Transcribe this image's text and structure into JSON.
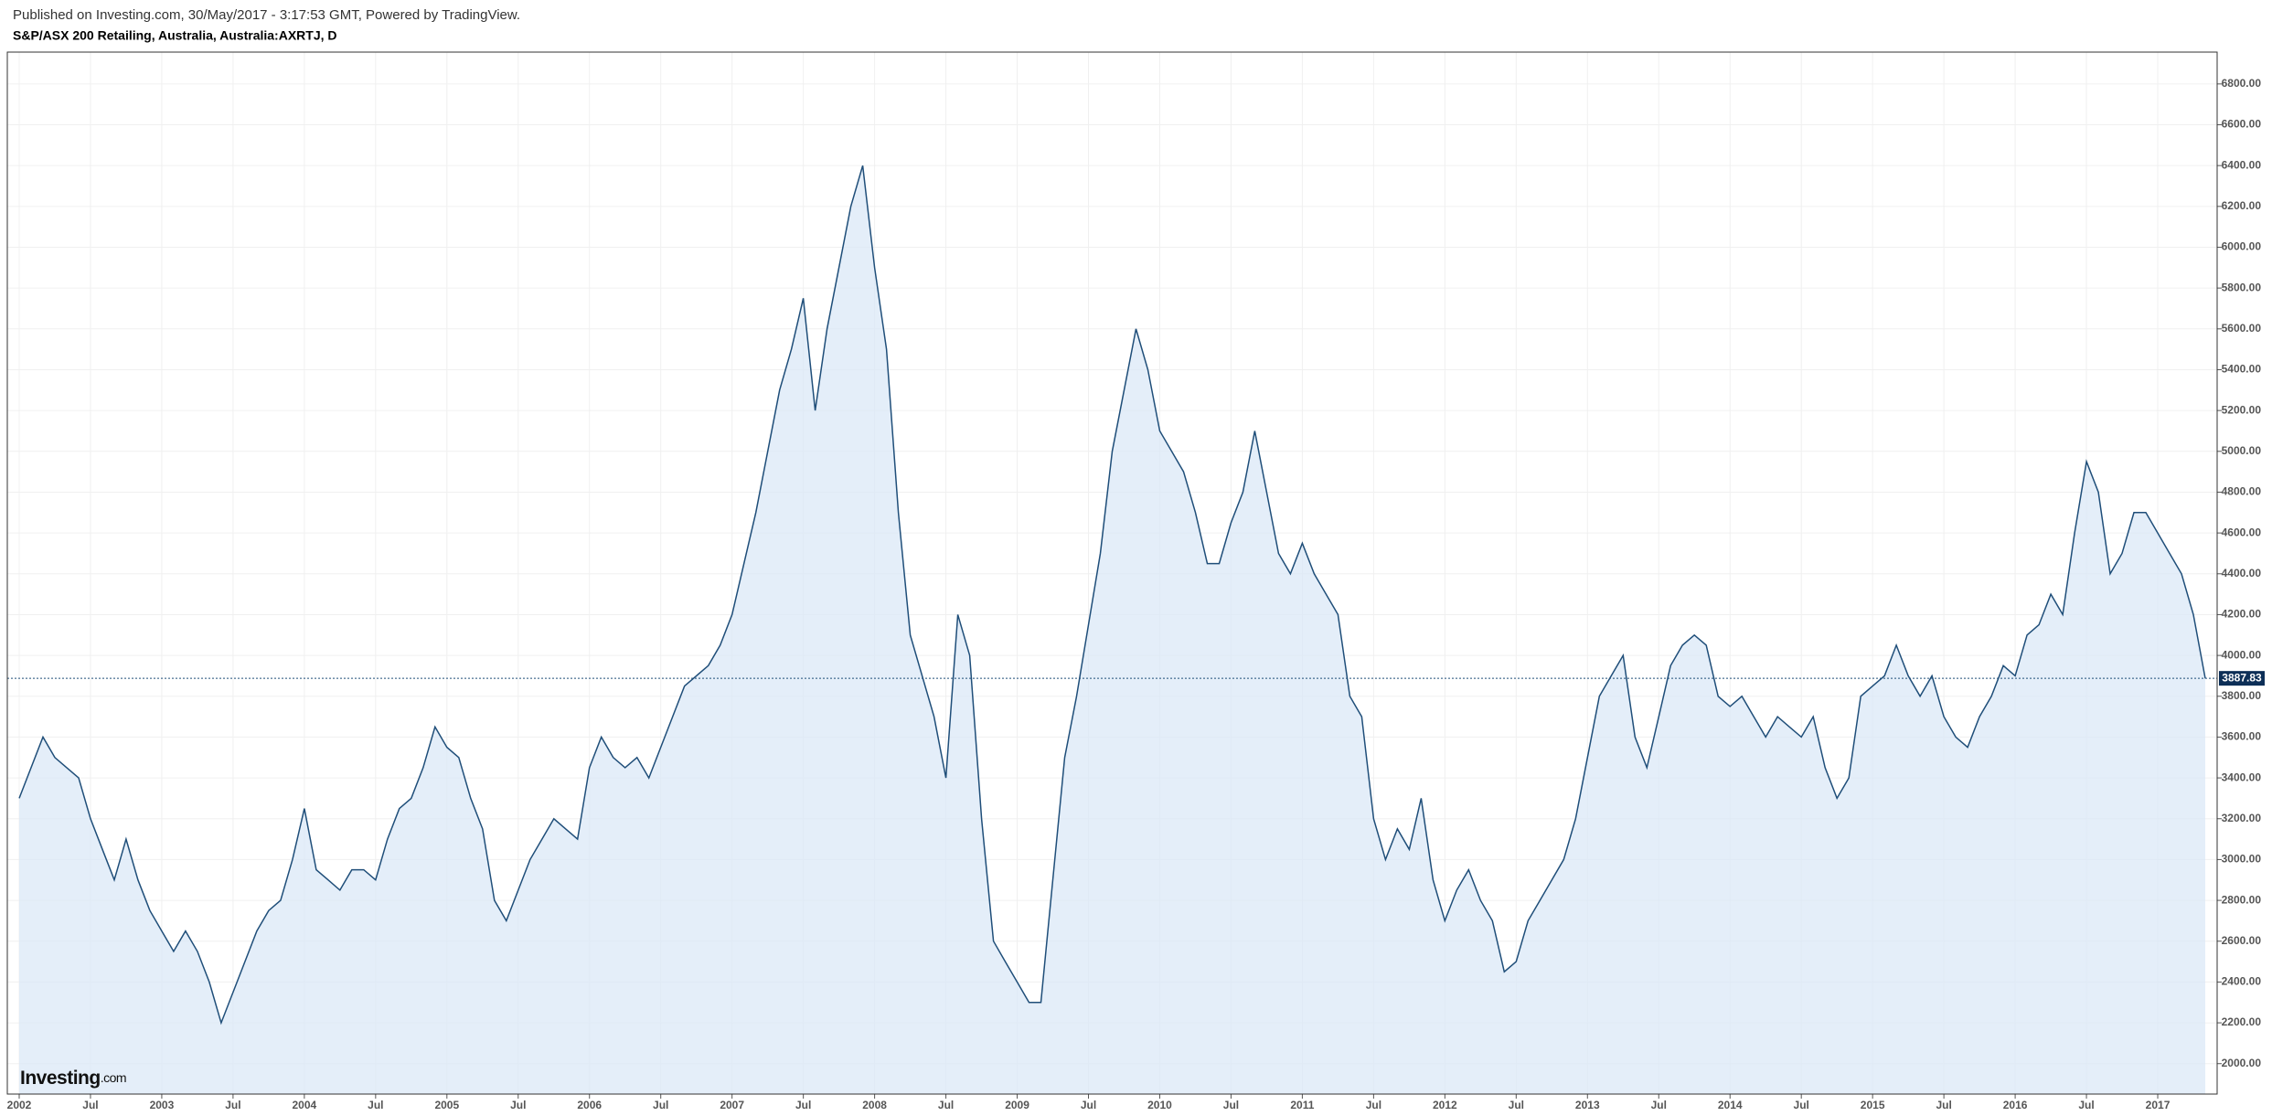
{
  "header": "Published on Investing.com, 30/May/2017 - 3:17:53 GMT, Powered by TradingView.",
  "logo": {
    "brand": "Investing",
    "suffix": ".com"
  },
  "chart_data": {
    "type": "area",
    "title": "S&P/ASX 200 Retailing, Australia, Australia:AXRTJ, D",
    "grid": true,
    "x": [
      "2002-01",
      "2002-02",
      "2002-03",
      "2002-04",
      "2002-05",
      "2002-06",
      "2002-07",
      "2002-08",
      "2002-09",
      "2002-10",
      "2002-11",
      "2002-12",
      "2003-01",
      "2003-02",
      "2003-03",
      "2003-04",
      "2003-05",
      "2003-06",
      "2003-07",
      "2003-08",
      "2003-09",
      "2003-10",
      "2003-11",
      "2003-12",
      "2004-01",
      "2004-02",
      "2004-03",
      "2004-04",
      "2004-05",
      "2004-06",
      "2004-07",
      "2004-08",
      "2004-09",
      "2004-10",
      "2004-11",
      "2004-12",
      "2005-01",
      "2005-02",
      "2005-03",
      "2005-04",
      "2005-05",
      "2005-06",
      "2005-07",
      "2005-08",
      "2005-09",
      "2005-10",
      "2005-11",
      "2005-12",
      "2006-01",
      "2006-02",
      "2006-03",
      "2006-04",
      "2006-05",
      "2006-06",
      "2006-07",
      "2006-08",
      "2006-09",
      "2006-10",
      "2006-11",
      "2006-12",
      "2007-01",
      "2007-02",
      "2007-03",
      "2007-04",
      "2007-05",
      "2007-06",
      "2007-07",
      "2007-08",
      "2007-09",
      "2007-10",
      "2007-11",
      "2007-12",
      "2008-01",
      "2008-02",
      "2008-03",
      "2008-04",
      "2008-05",
      "2008-06",
      "2008-07",
      "2008-08",
      "2008-09",
      "2008-10",
      "2008-11",
      "2008-12",
      "2009-01",
      "2009-02",
      "2009-03",
      "2009-04",
      "2009-05",
      "2009-06",
      "2009-07",
      "2009-08",
      "2009-09",
      "2009-10",
      "2009-11",
      "2009-12",
      "2010-01",
      "2010-02",
      "2010-03",
      "2010-04",
      "2010-05",
      "2010-06",
      "2010-07",
      "2010-08",
      "2010-09",
      "2010-10",
      "2010-11",
      "2010-12",
      "2011-01",
      "2011-02",
      "2011-03",
      "2011-04",
      "2011-05",
      "2011-06",
      "2011-07",
      "2011-08",
      "2011-09",
      "2011-10",
      "2011-11",
      "2011-12",
      "2012-01",
      "2012-02",
      "2012-03",
      "2012-04",
      "2012-05",
      "2012-06",
      "2012-07",
      "2012-08",
      "2012-09",
      "2012-10",
      "2012-11",
      "2012-12",
      "2013-01",
      "2013-02",
      "2013-03",
      "2013-04",
      "2013-05",
      "2013-06",
      "2013-07",
      "2013-08",
      "2013-09",
      "2013-10",
      "2013-11",
      "2013-12",
      "2014-01",
      "2014-02",
      "2014-03",
      "2014-04",
      "2014-05",
      "2014-06",
      "2014-07",
      "2014-08",
      "2014-09",
      "2014-10",
      "2014-11",
      "2014-12",
      "2015-01",
      "2015-02",
      "2015-03",
      "2015-04",
      "2015-05",
      "2015-06",
      "2015-07",
      "2015-08",
      "2015-09",
      "2015-10",
      "2015-11",
      "2015-12",
      "2016-01",
      "2016-02",
      "2016-03",
      "2016-04",
      "2016-05",
      "2016-06",
      "2016-07",
      "2016-08",
      "2016-09",
      "2016-10",
      "2016-11",
      "2016-12",
      "2017-01",
      "2017-02",
      "2017-03",
      "2017-04",
      "2017-05"
    ],
    "series": [
      {
        "color": "#1f4e79",
        "fill": "#dbe8f7",
        "values": [
          3300,
          3450,
          3600,
          3500,
          3450,
          3400,
          3200,
          3050,
          2900,
          3100,
          2900,
          2750,
          2650,
          2550,
          2650,
          2550,
          2400,
          2200,
          2350,
          2500,
          2650,
          2750,
          2800,
          3000,
          3250,
          2950,
          2900,
          2850,
          2950,
          2950,
          2900,
          3100,
          3250,
          3300,
          3450,
          3650,
          3550,
          3500,
          3300,
          3150,
          2800,
          2700,
          2850,
          3000,
          3100,
          3200,
          3150,
          3100,
          3450,
          3600,
          3500,
          3450,
          3500,
          3400,
          3550,
          3700,
          3850,
          3900,
          3950,
          4050,
          4200,
          4450,
          4700,
          5000,
          5300,
          5500,
          5750,
          5200,
          5600,
          5900,
          6200,
          6400,
          5900,
          5500,
          4700,
          4100,
          3900,
          3700,
          3400,
          4200,
          4000,
          3200,
          2600,
          2500,
          2400,
          2300,
          2300,
          2900,
          3500,
          3800,
          4150,
          4500,
          5000,
          5300,
          5600,
          5400,
          5100,
          5000,
          4900,
          4700,
          4450,
          4450,
          4650,
          4800,
          5100,
          4800,
          4500,
          4400,
          4550,
          4400,
          4300,
          4200,
          3800,
          3700,
          3200,
          3000,
          3150,
          3050,
          3300,
          2900,
          2700,
          2850,
          2950,
          2800,
          2700,
          2450,
          2500,
          2700,
          2800,
          2900,
          3000,
          3200,
          3500,
          3800,
          3900,
          4000,
          3600,
          3450,
          3700,
          3950,
          4050,
          4100,
          4050,
          3800,
          3750,
          3800,
          3700,
          3600,
          3700,
          3650,
          3600,
          3700,
          3450,
          3300,
          3400,
          3800,
          3850,
          3900,
          4050,
          3900,
          3800,
          3900,
          3700,
          3600,
          3550,
          3700,
          3800,
          3950,
          3900,
          4100,
          4150,
          4300,
          4200,
          4600,
          4950,
          4800,
          4400,
          4500,
          4700,
          4700,
          4600,
          4500,
          4400,
          4200,
          3887.83
        ]
      }
    ],
    "xlim": [
      "2001-12",
      "2017-06"
    ],
    "xticks": [
      {
        "value": "2002-01",
        "label": "2002"
      },
      {
        "value": "2002-07",
        "label": "Jul"
      },
      {
        "value": "2003-01",
        "label": "2003"
      },
      {
        "value": "2003-07",
        "label": "Jul"
      },
      {
        "value": "2004-01",
        "label": "2004"
      },
      {
        "value": "2004-07",
        "label": "Jul"
      },
      {
        "value": "2005-01",
        "label": "2005"
      },
      {
        "value": "2005-07",
        "label": "Jul"
      },
      {
        "value": "2006-01",
        "label": "2006"
      },
      {
        "value": "2006-07",
        "label": "Jul"
      },
      {
        "value": "2007-01",
        "label": "2007"
      },
      {
        "value": "2007-07",
        "label": "Jul"
      },
      {
        "value": "2008-01",
        "label": "2008"
      },
      {
        "value": "2008-07",
        "label": "Jul"
      },
      {
        "value": "2009-01",
        "label": "2009"
      },
      {
        "value": "2009-07",
        "label": "Jul"
      },
      {
        "value": "2010-01",
        "label": "2010"
      },
      {
        "value": "2010-07",
        "label": "Jul"
      },
      {
        "value": "2011-01",
        "label": "2011"
      },
      {
        "value": "2011-07",
        "label": "Jul"
      },
      {
        "value": "2012-01",
        "label": "2012"
      },
      {
        "value": "2012-07",
        "label": "Jul"
      },
      {
        "value": "2013-01",
        "label": "2013"
      },
      {
        "value": "2013-07",
        "label": "Jul"
      },
      {
        "value": "2014-01",
        "label": "2014"
      },
      {
        "value": "2014-07",
        "label": "Jul"
      },
      {
        "value": "2015-01",
        "label": "2015"
      },
      {
        "value": "2015-07",
        "label": "Jul"
      },
      {
        "value": "2016-01",
        "label": "2016"
      },
      {
        "value": "2016-07",
        "label": "Jul"
      },
      {
        "value": "2017-01",
        "label": "2017"
      }
    ],
    "ylim": [
      1851,
      6956
    ],
    "yticks": [
      {
        "value": 2000,
        "label": "2000.00"
      },
      {
        "value": 2200,
        "label": "2200.00"
      },
      {
        "value": 2400,
        "label": "2400.00"
      },
      {
        "value": 2600,
        "label": "2600.00"
      },
      {
        "value": 2800,
        "label": "2800.00"
      },
      {
        "value": 3000,
        "label": "3000.00"
      },
      {
        "value": 3200,
        "label": "3200.00"
      },
      {
        "value": 3400,
        "label": "3400.00"
      },
      {
        "value": 3600,
        "label": "3600.00"
      },
      {
        "value": 3800,
        "label": "3800.00"
      },
      {
        "value": 4000,
        "label": "4000.00"
      },
      {
        "value": 4200,
        "label": "4200.00"
      },
      {
        "value": 4400,
        "label": "4400.00"
      },
      {
        "value": 4600,
        "label": "4600.00"
      },
      {
        "value": 4800,
        "label": "4800.00"
      },
      {
        "value": 5000,
        "label": "5000.00"
      },
      {
        "value": 5200,
        "label": "5200.00"
      },
      {
        "value": 5400,
        "label": "5400.00"
      },
      {
        "value": 5600,
        "label": "5600.00"
      },
      {
        "value": 5800,
        "label": "5800.00"
      },
      {
        "value": 6000,
        "label": "6000.00"
      },
      {
        "value": 6200,
        "label": "6200.00"
      },
      {
        "value": 6400,
        "label": "6400.00"
      },
      {
        "value": 6600,
        "label": "6600.00"
      },
      {
        "value": 6800,
        "label": "6800.00"
      }
    ]
  }
}
